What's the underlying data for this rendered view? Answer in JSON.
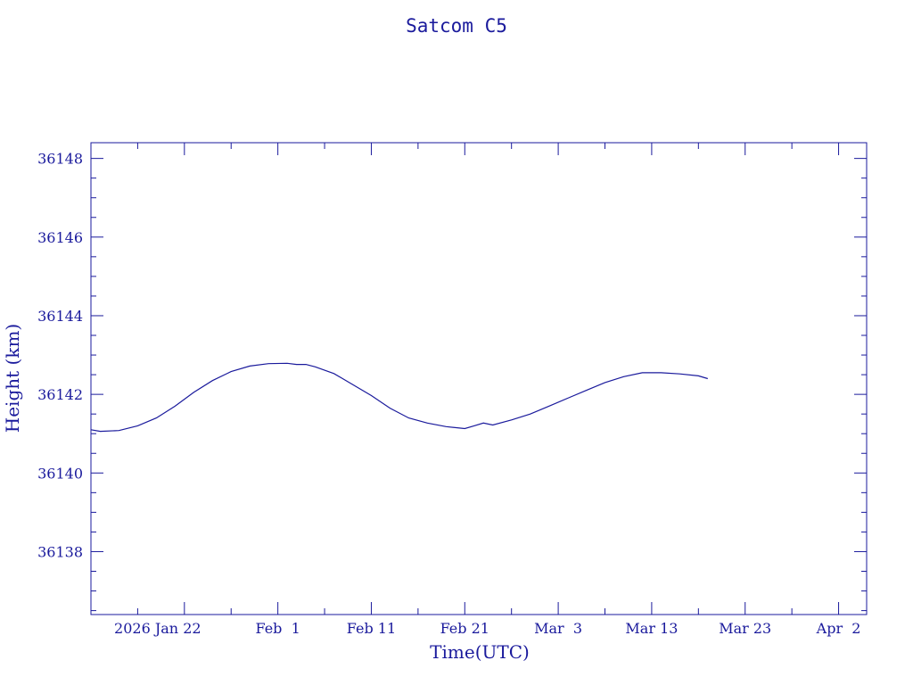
{
  "chart_data": {
    "type": "line",
    "title": "Satcom C5",
    "xlabel": "Time(UTC)",
    "ylabel": "Height (km)",
    "colors": {
      "ink": "#1a1a9c"
    },
    "x_axis": {
      "scale": "date",
      "range": [
        "2026-01-12",
        "2026-04-05"
      ],
      "tick_labels": [
        "2026 Jan 22",
        "Feb  1",
        "Feb 11",
        "Feb 21",
        "Mar  3",
        "Mar 13",
        "Mar 23",
        "Apr  2"
      ],
      "tick_dates": [
        "2026-01-22",
        "2026-02-01",
        "2026-02-11",
        "2026-02-21",
        "2026-03-03",
        "2026-03-13",
        "2026-03-23",
        "2026-04-02"
      ],
      "minor_tick_days": 5
    },
    "y_axis": {
      "range": [
        36136.4,
        36148.4
      ],
      "tick_labels": [
        "36138",
        "36140",
        "36142",
        "36144",
        "36146",
        "36148"
      ],
      "ticks": [
        36138,
        36140,
        36142,
        36144,
        36146,
        36148
      ],
      "minor_step": 0.5
    },
    "grid": false,
    "series": [
      {
        "x": [
          "2026-01-12",
          "2026-01-13",
          "2026-01-15",
          "2026-01-17",
          "2026-01-19",
          "2026-01-21",
          "2026-01-23",
          "2026-01-25",
          "2026-01-27",
          "2026-01-29",
          "2026-01-31",
          "2026-02-02",
          "2026-02-03",
          "2026-02-04",
          "2026-02-05",
          "2026-02-07",
          "2026-02-09",
          "2026-02-11",
          "2026-02-13",
          "2026-02-15",
          "2026-02-17",
          "2026-02-19",
          "2026-02-21",
          "2026-02-22",
          "2026-02-23",
          "2026-02-24",
          "2026-02-26",
          "2026-02-28",
          "2026-03-02",
          "2026-03-04",
          "2026-03-06",
          "2026-03-08",
          "2026-03-10",
          "2026-03-12",
          "2026-03-14",
          "2026-03-16",
          "2026-03-18",
          "2026-03-19"
        ],
        "y": [
          36141.1,
          36141.06,
          36141.08,
          36141.2,
          36141.4,
          36141.7,
          36142.05,
          36142.35,
          36142.58,
          36142.72,
          36142.78,
          36142.79,
          36142.76,
          36142.76,
          36142.7,
          36142.53,
          36142.25,
          36141.97,
          36141.65,
          36141.4,
          36141.27,
          36141.18,
          36141.13,
          36141.2,
          36141.27,
          36141.22,
          36141.35,
          36141.5,
          36141.7,
          36141.9,
          36142.1,
          36142.3,
          36142.45,
          36142.55,
          36142.55,
          36142.52,
          36142.47,
          36142.4
        ]
      }
    ]
  }
}
